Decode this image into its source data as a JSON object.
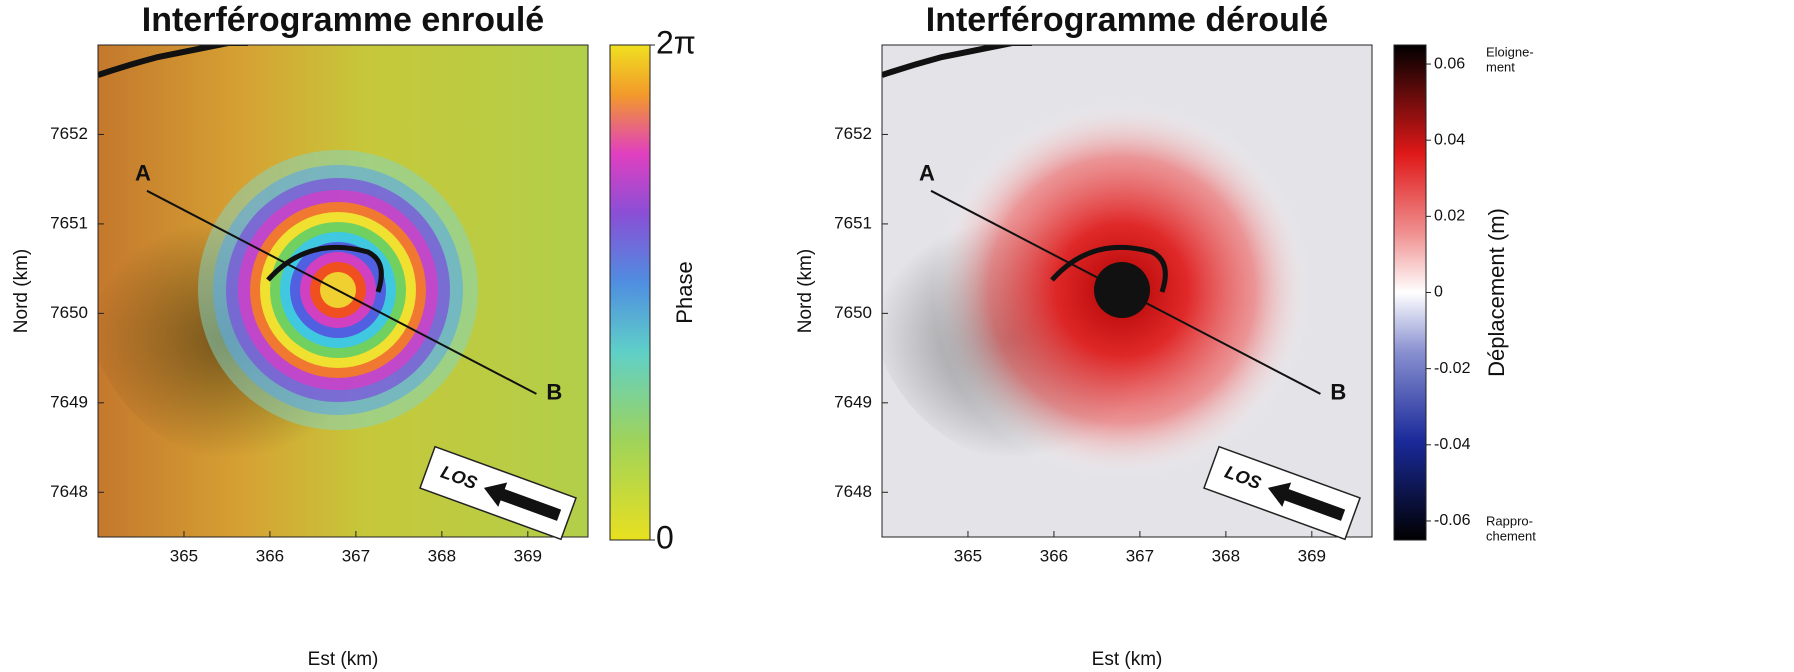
{
  "chart_data": [
    {
      "type": "map",
      "title": "Interférogramme enroulé",
      "x_label": "Est (km)",
      "y_label": "Nord (km)",
      "xlim": [
        364.0,
        369.7
      ],
      "ylim": [
        7647.5,
        7653.0
      ],
      "xticks": [
        365,
        366,
        367,
        368,
        369
      ],
      "yticks": [
        7648,
        7649,
        7650,
        7651,
        7652
      ],
      "profile": {
        "labels": [
          "A",
          "B"
        ],
        "x": [
          364.57,
          369.1
        ],
        "y": [
          7651.37,
          7649.1
        ]
      },
      "annotation": "LOS",
      "colorbar": {
        "colormap": "phase",
        "label": "Phase",
        "lim": [
          0,
          6.28
        ],
        "ticks": [
          0,
          {
            "value": 6.28,
            "label": "2π"
          }
        ]
      }
    },
    {
      "type": "map",
      "title": "Interférogramme déroulé",
      "x_label": "Est (km)",
      "y_label": "Nord (km)",
      "xlim": [
        364.0,
        369.7
      ],
      "ylim": [
        7647.5,
        7653.0
      ],
      "xticks": [
        365,
        366,
        367,
        368,
        369
      ],
      "yticks": [
        7648,
        7649,
        7650,
        7651,
        7652
      ],
      "profile": {
        "labels": [
          "A",
          "B"
        ],
        "x": [
          364.57,
          369.1
        ],
        "y": [
          7651.37,
          7649.1
        ]
      },
      "annotation": "LOS",
      "colorbar": {
        "colormap": "displacement",
        "label": "Déplacement (m)",
        "lim": [
          -0.065,
          0.065
        ],
        "ticks": [
          -0.06,
          -0.04,
          -0.02,
          0,
          0.02,
          0.04,
          0.06
        ],
        "top_label": [
          "Eloigne-",
          "ment"
        ],
        "bottom_label": [
          "Rappro-",
          "chement"
        ]
      }
    }
  ]
}
